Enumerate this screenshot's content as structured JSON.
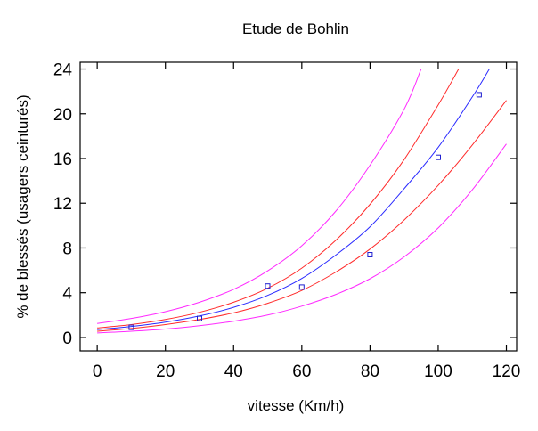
{
  "chart_data": {
    "type": "scatter",
    "title": "Etude de Bohlin",
    "xlabel": "vitesse (Km/h)",
    "ylabel": "% de blessés (usagers ceinturés)",
    "xlim": [
      -5,
      123
    ],
    "ylim": [
      -1.2,
      24.6
    ],
    "x_ticks": [
      0,
      20,
      40,
      60,
      80,
      100,
      120
    ],
    "y_ticks": [
      0,
      4,
      8,
      12,
      16,
      20,
      24
    ],
    "grid": false,
    "colors": {
      "points": "#1f1fd0",
      "fit": "#2a2aff",
      "inner_band": "#ff2a2a",
      "outer_band": "#ff2aff"
    },
    "series": [
      {
        "kind": "points",
        "x": [
          10,
          30,
          50,
          60,
          80,
          100,
          112
        ],
        "y": [
          0.9,
          1.7,
          4.6,
          4.5,
          7.4,
          16.1,
          21.7
        ]
      },
      {
        "kind": "fit",
        "x": [
          0,
          10,
          20,
          30,
          40,
          50,
          60,
          70,
          80,
          90,
          100,
          110,
          115
        ],
        "y": [
          0.7,
          0.98,
          1.37,
          1.92,
          2.69,
          3.76,
          5.27,
          7.37,
          9.9,
          13.3,
          17.0,
          21.5,
          24.0
        ]
      },
      {
        "kind": "upper-inner",
        "x": [
          0,
          10,
          20,
          30,
          40,
          50,
          60,
          70,
          80,
          90,
          100,
          106
        ],
        "y": [
          0.85,
          1.15,
          1.6,
          2.25,
          3.15,
          4.4,
          6.2,
          8.7,
          11.9,
          15.9,
          20.8,
          24.0
        ]
      },
      {
        "kind": "lower-inner",
        "x": [
          0,
          10,
          20,
          30,
          40,
          50,
          60,
          70,
          80,
          90,
          100,
          110,
          120
        ],
        "y": [
          0.55,
          0.8,
          1.15,
          1.6,
          2.2,
          3.05,
          4.2,
          5.85,
          7.9,
          10.5,
          13.6,
          17.2,
          21.2
        ]
      },
      {
        "kind": "upper-outer",
        "x": [
          0,
          10,
          20,
          30,
          40,
          50,
          60,
          70,
          80,
          90,
          95
        ],
        "y": [
          1.25,
          1.7,
          2.3,
          3.15,
          4.3,
          5.95,
          8.2,
          11.3,
          15.4,
          20.4,
          24.0
        ]
      },
      {
        "kind": "lower-outer",
        "x": [
          0,
          10,
          20,
          30,
          40,
          50,
          60,
          70,
          80,
          90,
          100,
          110,
          120
        ],
        "y": [
          0.4,
          0.55,
          0.75,
          1.05,
          1.45,
          2.0,
          2.8,
          3.85,
          5.25,
          7.2,
          9.8,
          13.2,
          17.3
        ]
      }
    ]
  }
}
